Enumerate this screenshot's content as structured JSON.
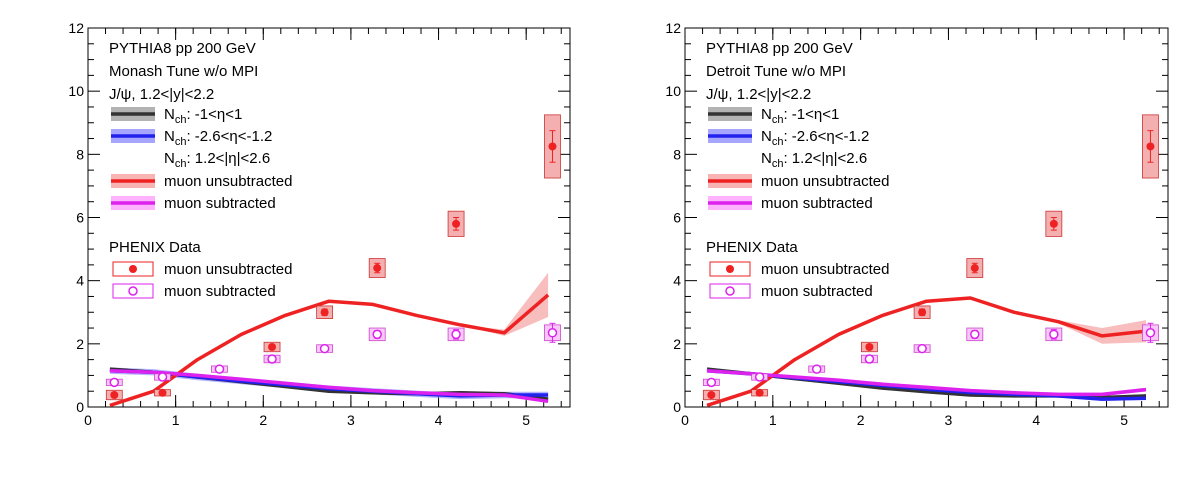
{
  "chart_data": [
    {
      "type": "line",
      "xlim": [
        0,
        5.5
      ],
      "ylim": [
        0,
        12
      ],
      "xticks": [
        "0",
        "1",
        "2",
        "3",
        "4",
        "5"
      ],
      "yticks": [
        "0",
        "2",
        "4",
        "6",
        "8",
        "10",
        "12"
      ],
      "grid": false,
      "legend_placement": "top-left",
      "texts": [
        "PYTHIA8 pp 200 GeV",
        "Monash Tune w/o MPI",
        "J/ψ, 1.2<|y|<2.2"
      ],
      "data_header": "PHENIX Data",
      "series": [
        {
          "name": "Nch: -1<η<1",
          "label_main": "N",
          "label_sub": "ch",
          "label_rest": ": -1<η<1",
          "color": "#333333",
          "band_color": "#9a9a9a",
          "x": [
            0.25,
            0.75,
            1.25,
            1.75,
            2.25,
            2.75,
            3.25,
            3.75,
            4.25,
            4.75,
            5.25
          ],
          "y": [
            1.2,
            1.1,
            0.95,
            0.8,
            0.65,
            0.5,
            0.45,
            0.42,
            0.45,
            0.42,
            0.25
          ],
          "err": 0.05
        },
        {
          "name": "Nch: -2.6<η<-1.2",
          "label_main": "N",
          "label_sub": "ch",
          "label_rest": ": -2.6<η<-1.2",
          "color": "#2222ee",
          "band_color": "#8888ff",
          "x": [
            0.25,
            0.75,
            1.25,
            1.75,
            2.25,
            2.75,
            3.25,
            3.75,
            4.25,
            4.75,
            5.25
          ],
          "y": [
            1.15,
            1.1,
            0.95,
            0.82,
            0.7,
            0.58,
            0.5,
            0.42,
            0.35,
            0.38,
            0.38
          ],
          "err": 0.1
        },
        {
          "name": "Nch: 1.2<|η|<2.6",
          "label_main": "N",
          "label_sub": "ch",
          "label_rest": ": 1.2<|η|<2.6",
          "color": "#ffffff",
          "band_color": "#ffffff",
          "x": [],
          "y": [],
          "err": 0
        },
        {
          "name": "muon unsubtracted",
          "color": "#ee2222",
          "band_color": "#f59a9a",
          "x": [
            0.25,
            0.75,
            1.25,
            1.75,
            2.25,
            2.75,
            3.25,
            3.75,
            4.25,
            4.75,
            5.25
          ],
          "y": [
            0.05,
            0.5,
            1.5,
            2.3,
            2.9,
            3.35,
            3.25,
            2.9,
            2.6,
            2.35,
            3.55
          ],
          "err_low": [
            0,
            0,
            0,
            0,
            0,
            0,
            0,
            0,
            0,
            0.1,
            0.7
          ],
          "err_high": [
            0,
            0,
            0,
            0,
            0,
            0,
            0,
            0,
            0,
            0.1,
            0.7
          ]
        },
        {
          "name": "muon subtracted",
          "color": "#dd22ee",
          "band_color": "#ff99ff",
          "x": [
            0.25,
            0.75,
            1.25,
            1.75,
            2.25,
            2.75,
            3.25,
            3.75,
            4.25,
            4.75,
            5.25
          ],
          "y": [
            1.15,
            1.1,
            1.0,
            0.88,
            0.75,
            0.62,
            0.52,
            0.45,
            0.4,
            0.38,
            0.18
          ],
          "err": 0.04
        }
      ],
      "data_series": [
        {
          "name": "muon unsubtracted",
          "marker": "filled",
          "color": "#ee2222",
          "box_fill": "#f4b0b0",
          "box_stroke": "#cc3333",
          "x": [
            0.3,
            0.85,
            2.1,
            2.7,
            3.3,
            4.2,
            5.3
          ],
          "y": [
            0.38,
            0.45,
            1.9,
            3.0,
            4.4,
            5.8,
            8.25
          ],
          "stat": [
            0.05,
            0.05,
            0.08,
            0.1,
            0.15,
            0.2,
            0.5
          ],
          "sys": [
            0.15,
            0.1,
            0.15,
            0.2,
            0.3,
            0.4,
            1.0
          ]
        },
        {
          "name": "muon subtracted",
          "marker": "open",
          "color": "#dd22ee",
          "box_fill": "#f8c8f8",
          "box_stroke": "#cc44cc",
          "x": [
            0.3,
            0.85,
            1.5,
            2.1,
            2.7,
            3.3,
            4.2,
            5.3
          ],
          "y": [
            0.78,
            0.95,
            1.2,
            1.52,
            1.85,
            2.3,
            2.3,
            2.35
          ],
          "stat": [
            0.05,
            0.05,
            0.06,
            0.07,
            0.08,
            0.12,
            0.15,
            0.3
          ],
          "sys": [
            0.1,
            0.1,
            0.1,
            0.12,
            0.12,
            0.2,
            0.2,
            0.25
          ]
        }
      ]
    },
    {
      "type": "line",
      "xlim": [
        0,
        5.5
      ],
      "ylim": [
        0,
        12
      ],
      "xticks": [
        "0",
        "1",
        "2",
        "3",
        "4",
        "5"
      ],
      "yticks": [
        "0",
        "2",
        "4",
        "6",
        "8",
        "10",
        "12"
      ],
      "grid": false,
      "legend_placement": "top-left",
      "texts": [
        "PYTHIA8 pp 200 GeV",
        "Detroit Tune w/o MPI",
        "J/ψ, 1.2<|y|<2.2"
      ],
      "data_header": "PHENIX Data",
      "series": [
        {
          "name": "Nch: -1<η<1",
          "label_main": "N",
          "label_sub": "ch",
          "label_rest": ": -1<η<1",
          "color": "#333333",
          "band_color": "#9a9a9a",
          "x": [
            0.25,
            0.75,
            1.25,
            1.75,
            2.25,
            2.75,
            3.25,
            3.75,
            4.25,
            4.75,
            5.25
          ],
          "y": [
            1.2,
            1.05,
            0.9,
            0.75,
            0.6,
            0.48,
            0.38,
            0.35,
            0.35,
            0.3,
            0.35
          ],
          "err": 0.05
        },
        {
          "name": "Nch: -2.6<η<-1.2",
          "label_main": "N",
          "label_sub": "ch",
          "label_rest": ": -2.6<η<-1.2",
          "color": "#2222ee",
          "band_color": "#8888ff",
          "x": [
            0.25,
            0.75,
            1.25,
            1.75,
            2.25,
            2.75,
            3.25,
            3.75,
            4.25,
            4.75,
            5.25
          ],
          "y": [
            1.15,
            1.05,
            0.92,
            0.8,
            0.68,
            0.56,
            0.46,
            0.4,
            0.35,
            0.25,
            0.28
          ],
          "err": 0.06
        },
        {
          "name": "Nch: 1.2<|η|<2.6",
          "label_main": "N",
          "label_sub": "ch",
          "label_rest": ": 1.2<|η|<2.6",
          "color": "#ffffff",
          "band_color": "#ffffff",
          "x": [],
          "y": [],
          "err": 0
        },
        {
          "name": "muon unsubtracted",
          "color": "#ee2222",
          "band_color": "#f59a9a",
          "x": [
            0.25,
            0.75,
            1.25,
            1.75,
            2.25,
            2.75,
            3.25,
            3.75,
            4.25,
            4.75,
            5.25
          ],
          "y": [
            0.05,
            0.5,
            1.5,
            2.3,
            2.9,
            3.35,
            3.45,
            3.0,
            2.7,
            2.25,
            2.4
          ],
          "err_low": [
            0,
            0,
            0,
            0,
            0,
            0,
            0,
            0,
            0.05,
            0.25,
            0.35
          ],
          "err_high": [
            0,
            0,
            0,
            0,
            0,
            0,
            0,
            0,
            0.05,
            0.25,
            0.35
          ]
        },
        {
          "name": "muon subtracted",
          "color": "#dd22ee",
          "band_color": "#ff99ff",
          "x": [
            0.25,
            0.75,
            1.25,
            1.75,
            2.25,
            2.75,
            3.25,
            3.75,
            4.25,
            4.75,
            5.25
          ],
          "y": [
            1.15,
            1.05,
            0.95,
            0.85,
            0.72,
            0.62,
            0.52,
            0.45,
            0.4,
            0.4,
            0.55
          ],
          "err": 0.06
        }
      ],
      "data_series": [
        {
          "name": "muon unsubtracted",
          "marker": "filled",
          "color": "#ee2222",
          "box_fill": "#f4b0b0",
          "box_stroke": "#cc3333",
          "x": [
            0.3,
            0.85,
            2.1,
            2.7,
            3.3,
            4.2,
            5.3
          ],
          "y": [
            0.38,
            0.45,
            1.9,
            3.0,
            4.4,
            5.8,
            8.25
          ],
          "stat": [
            0.05,
            0.05,
            0.08,
            0.1,
            0.15,
            0.2,
            0.5
          ],
          "sys": [
            0.15,
            0.1,
            0.15,
            0.2,
            0.3,
            0.4,
            1.0
          ]
        },
        {
          "name": "muon subtracted",
          "marker": "open",
          "color": "#dd22ee",
          "box_fill": "#f8c8f8",
          "box_stroke": "#cc44cc",
          "x": [
            0.3,
            0.85,
            1.5,
            2.1,
            2.7,
            3.3,
            4.2,
            5.3
          ],
          "y": [
            0.78,
            0.95,
            1.2,
            1.52,
            1.85,
            2.3,
            2.3,
            2.35
          ],
          "stat": [
            0.05,
            0.05,
            0.06,
            0.07,
            0.08,
            0.12,
            0.15,
            0.3
          ],
          "sys": [
            0.1,
            0.1,
            0.1,
            0.12,
            0.12,
            0.2,
            0.2,
            0.25
          ]
        }
      ]
    }
  ]
}
